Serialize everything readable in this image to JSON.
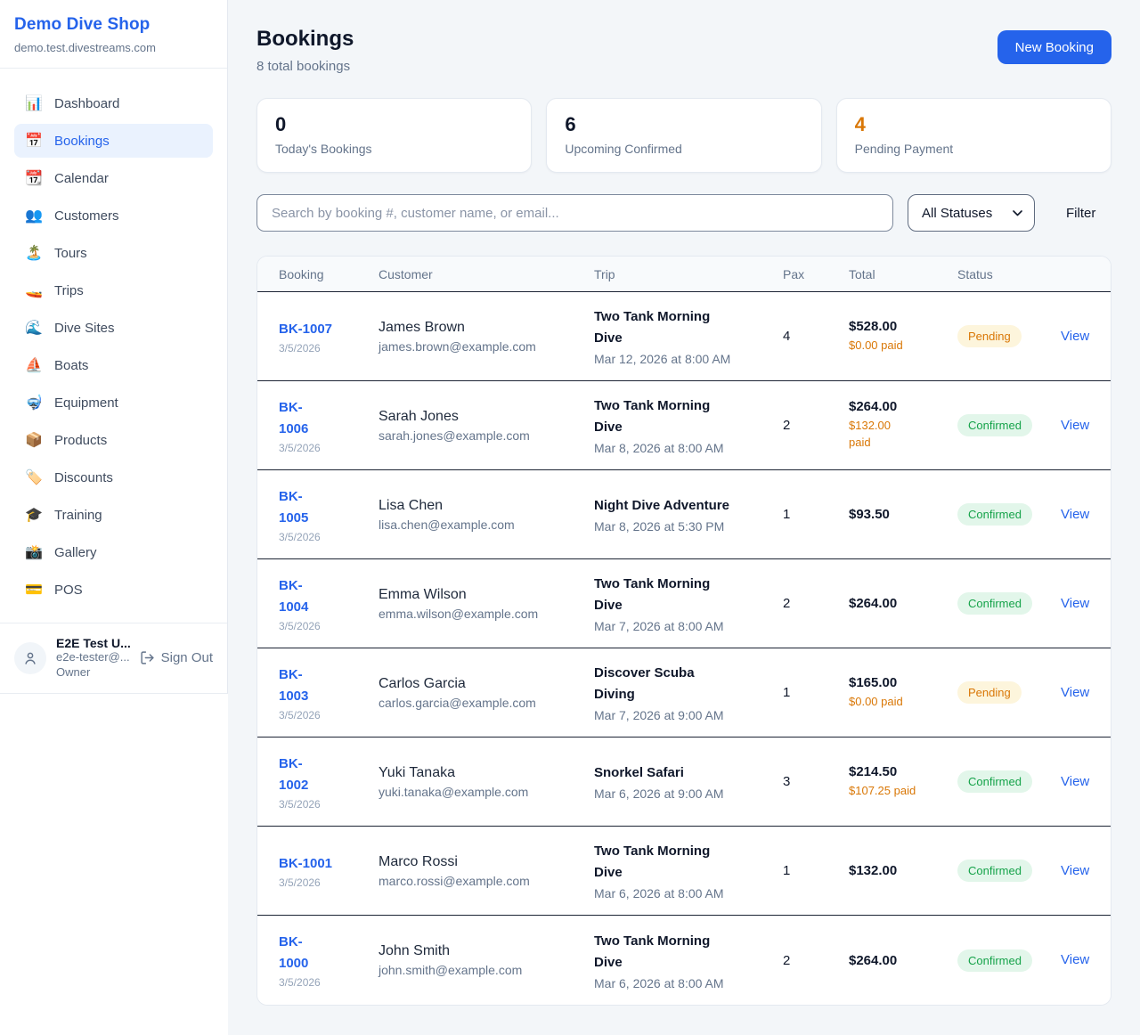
{
  "sidebar": {
    "brand": {
      "name": "Demo Dive Shop",
      "domain": "demo.test.divestreams.com"
    },
    "nav": [
      {
        "label": "Dashboard",
        "icon": "📊",
        "icon_name": "bar-chart-icon",
        "active": false
      },
      {
        "label": "Bookings",
        "icon": "📅",
        "icon_name": "calendar-icon",
        "active": true
      },
      {
        "label": "Calendar",
        "icon": "📆",
        "icon_name": "tear-off-calendar-icon",
        "active": false
      },
      {
        "label": "Customers",
        "icon": "👥",
        "icon_name": "people-icon",
        "active": false
      },
      {
        "label": "Tours",
        "icon": "🏝️",
        "icon_name": "island-icon",
        "active": false
      },
      {
        "label": "Trips",
        "icon": "🚤",
        "icon_name": "speedboat-icon",
        "active": false
      },
      {
        "label": "Dive Sites",
        "icon": "🌊",
        "icon_name": "wave-icon",
        "active": false
      },
      {
        "label": "Boats",
        "icon": "⛵",
        "icon_name": "sailboat-icon",
        "active": false
      },
      {
        "label": "Equipment",
        "icon": "🤿",
        "icon_name": "diving-mask-icon",
        "active": false
      },
      {
        "label": "Products",
        "icon": "📦",
        "icon_name": "package-icon",
        "active": false
      },
      {
        "label": "Discounts",
        "icon": "🏷️",
        "icon_name": "label-tag-icon",
        "active": false
      },
      {
        "label": "Training",
        "icon": "🎓",
        "icon_name": "graduation-cap-icon",
        "active": false
      },
      {
        "label": "Gallery",
        "icon": "📸",
        "icon_name": "camera-icon",
        "active": false
      },
      {
        "label": "POS",
        "icon": "💳",
        "icon_name": "credit-card-icon",
        "active": false
      }
    ],
    "user": {
      "name": "E2E Test U...",
      "email": "e2e-tester@...",
      "role": "Owner",
      "sign_out_label": "Sign Out"
    }
  },
  "header": {
    "title": "Bookings",
    "subtitle": "8 total bookings",
    "new_booking_label": "New Booking"
  },
  "stats": [
    {
      "value": "0",
      "label": "Today's Bookings",
      "value_color": "#0f172a"
    },
    {
      "value": "6",
      "label": "Upcoming Confirmed",
      "value_color": "#0f172a"
    },
    {
      "value": "4",
      "label": "Pending Payment",
      "value_color": "#d97706"
    }
  ],
  "filters": {
    "search_placeholder": "Search by booking #, customer name, or email...",
    "status_selected": "All Statuses",
    "filter_label": "Filter"
  },
  "table": {
    "columns": [
      "Booking",
      "Customer",
      "Trip",
      "Pax",
      "Total",
      "Status"
    ],
    "rows": [
      {
        "booking_id": "BK-1007",
        "booking_date": "3/5/2026",
        "customer_name": "James Brown",
        "customer_email": "james.brown@example.com",
        "trip_name": "Two Tank Morning\nDive",
        "trip_datetime": "Mar 12, 2026 at 8:00 AM",
        "pax": "4",
        "total": "$528.00",
        "paid": "$0.00 paid",
        "status": "Pending",
        "action": "View"
      },
      {
        "booking_id": "BK-\n1006",
        "booking_date": "3/5/2026",
        "customer_name": "Sarah Jones",
        "customer_email": "sarah.jones@example.com",
        "trip_name": "Two Tank Morning\nDive",
        "trip_datetime": "Mar 8, 2026 at 8:00 AM",
        "pax": "2",
        "total": "$264.00",
        "paid": "$132.00\npaid",
        "status": "Confirmed",
        "action": "View"
      },
      {
        "booking_id": "BK-\n1005",
        "booking_date": "3/5/2026",
        "customer_name": "Lisa Chen",
        "customer_email": "lisa.chen@example.com",
        "trip_name": "Night Dive Adventure",
        "trip_datetime": "Mar 8, 2026 at 5:30 PM",
        "pax": "1",
        "total": "$93.50",
        "paid": "",
        "status": "Confirmed",
        "action": "View"
      },
      {
        "booking_id": "BK-\n1004",
        "booking_date": "3/5/2026",
        "customer_name": "Emma Wilson",
        "customer_email": "emma.wilson@example.com",
        "trip_name": "Two Tank Morning\nDive",
        "trip_datetime": "Mar 7, 2026 at 8:00 AM",
        "pax": "2",
        "total": "$264.00",
        "paid": "",
        "status": "Confirmed",
        "action": "View"
      },
      {
        "booking_id": "BK-\n1003",
        "booking_date": "3/5/2026",
        "customer_name": "Carlos Garcia",
        "customer_email": "carlos.garcia@example.com",
        "trip_name": "Discover Scuba\nDiving",
        "trip_datetime": "Mar 7, 2026 at 9:00 AM",
        "pax": "1",
        "total": "$165.00",
        "paid": "$0.00 paid",
        "status": "Pending",
        "action": "View"
      },
      {
        "booking_id": "BK-\n1002",
        "booking_date": "3/5/2026",
        "customer_name": "Yuki Tanaka",
        "customer_email": "yuki.tanaka@example.com",
        "trip_name": "Snorkel Safari",
        "trip_datetime": "Mar 6, 2026 at 9:00 AM",
        "pax": "3",
        "total": "$214.50",
        "paid": "$107.25 paid",
        "status": "Confirmed",
        "action": "View"
      },
      {
        "booking_id": "BK-1001",
        "booking_date": "3/5/2026",
        "customer_name": "Marco Rossi",
        "customer_email": "marco.rossi@example.com",
        "trip_name": "Two Tank Morning\nDive",
        "trip_datetime": "Mar 6, 2026 at 8:00 AM",
        "pax": "1",
        "total": "$132.00",
        "paid": "",
        "status": "Confirmed",
        "action": "View"
      },
      {
        "booking_id": "BK-\n1000",
        "booking_date": "3/5/2026",
        "customer_name": "John Smith",
        "customer_email": "john.smith@example.com",
        "trip_name": "Two Tank Morning\nDive",
        "trip_datetime": "Mar 6, 2026 at 8:00 AM",
        "pax": "2",
        "total": "$264.00",
        "paid": "",
        "status": "Confirmed",
        "action": "View"
      }
    ]
  },
  "colors": {
    "accent_blue": "#2563eb",
    "active_nav_bg": "#eaf2fe",
    "pending_text": "#d97706",
    "pending_bg": "#fdf5dc",
    "confirmed_text": "#16a34a",
    "confirmed_bg": "#e2f6ea",
    "muted_text": "#64748b",
    "row_divider": "#1c2434",
    "card_border": "#e4e9f0",
    "page_bg": "#f3f6f9"
  }
}
